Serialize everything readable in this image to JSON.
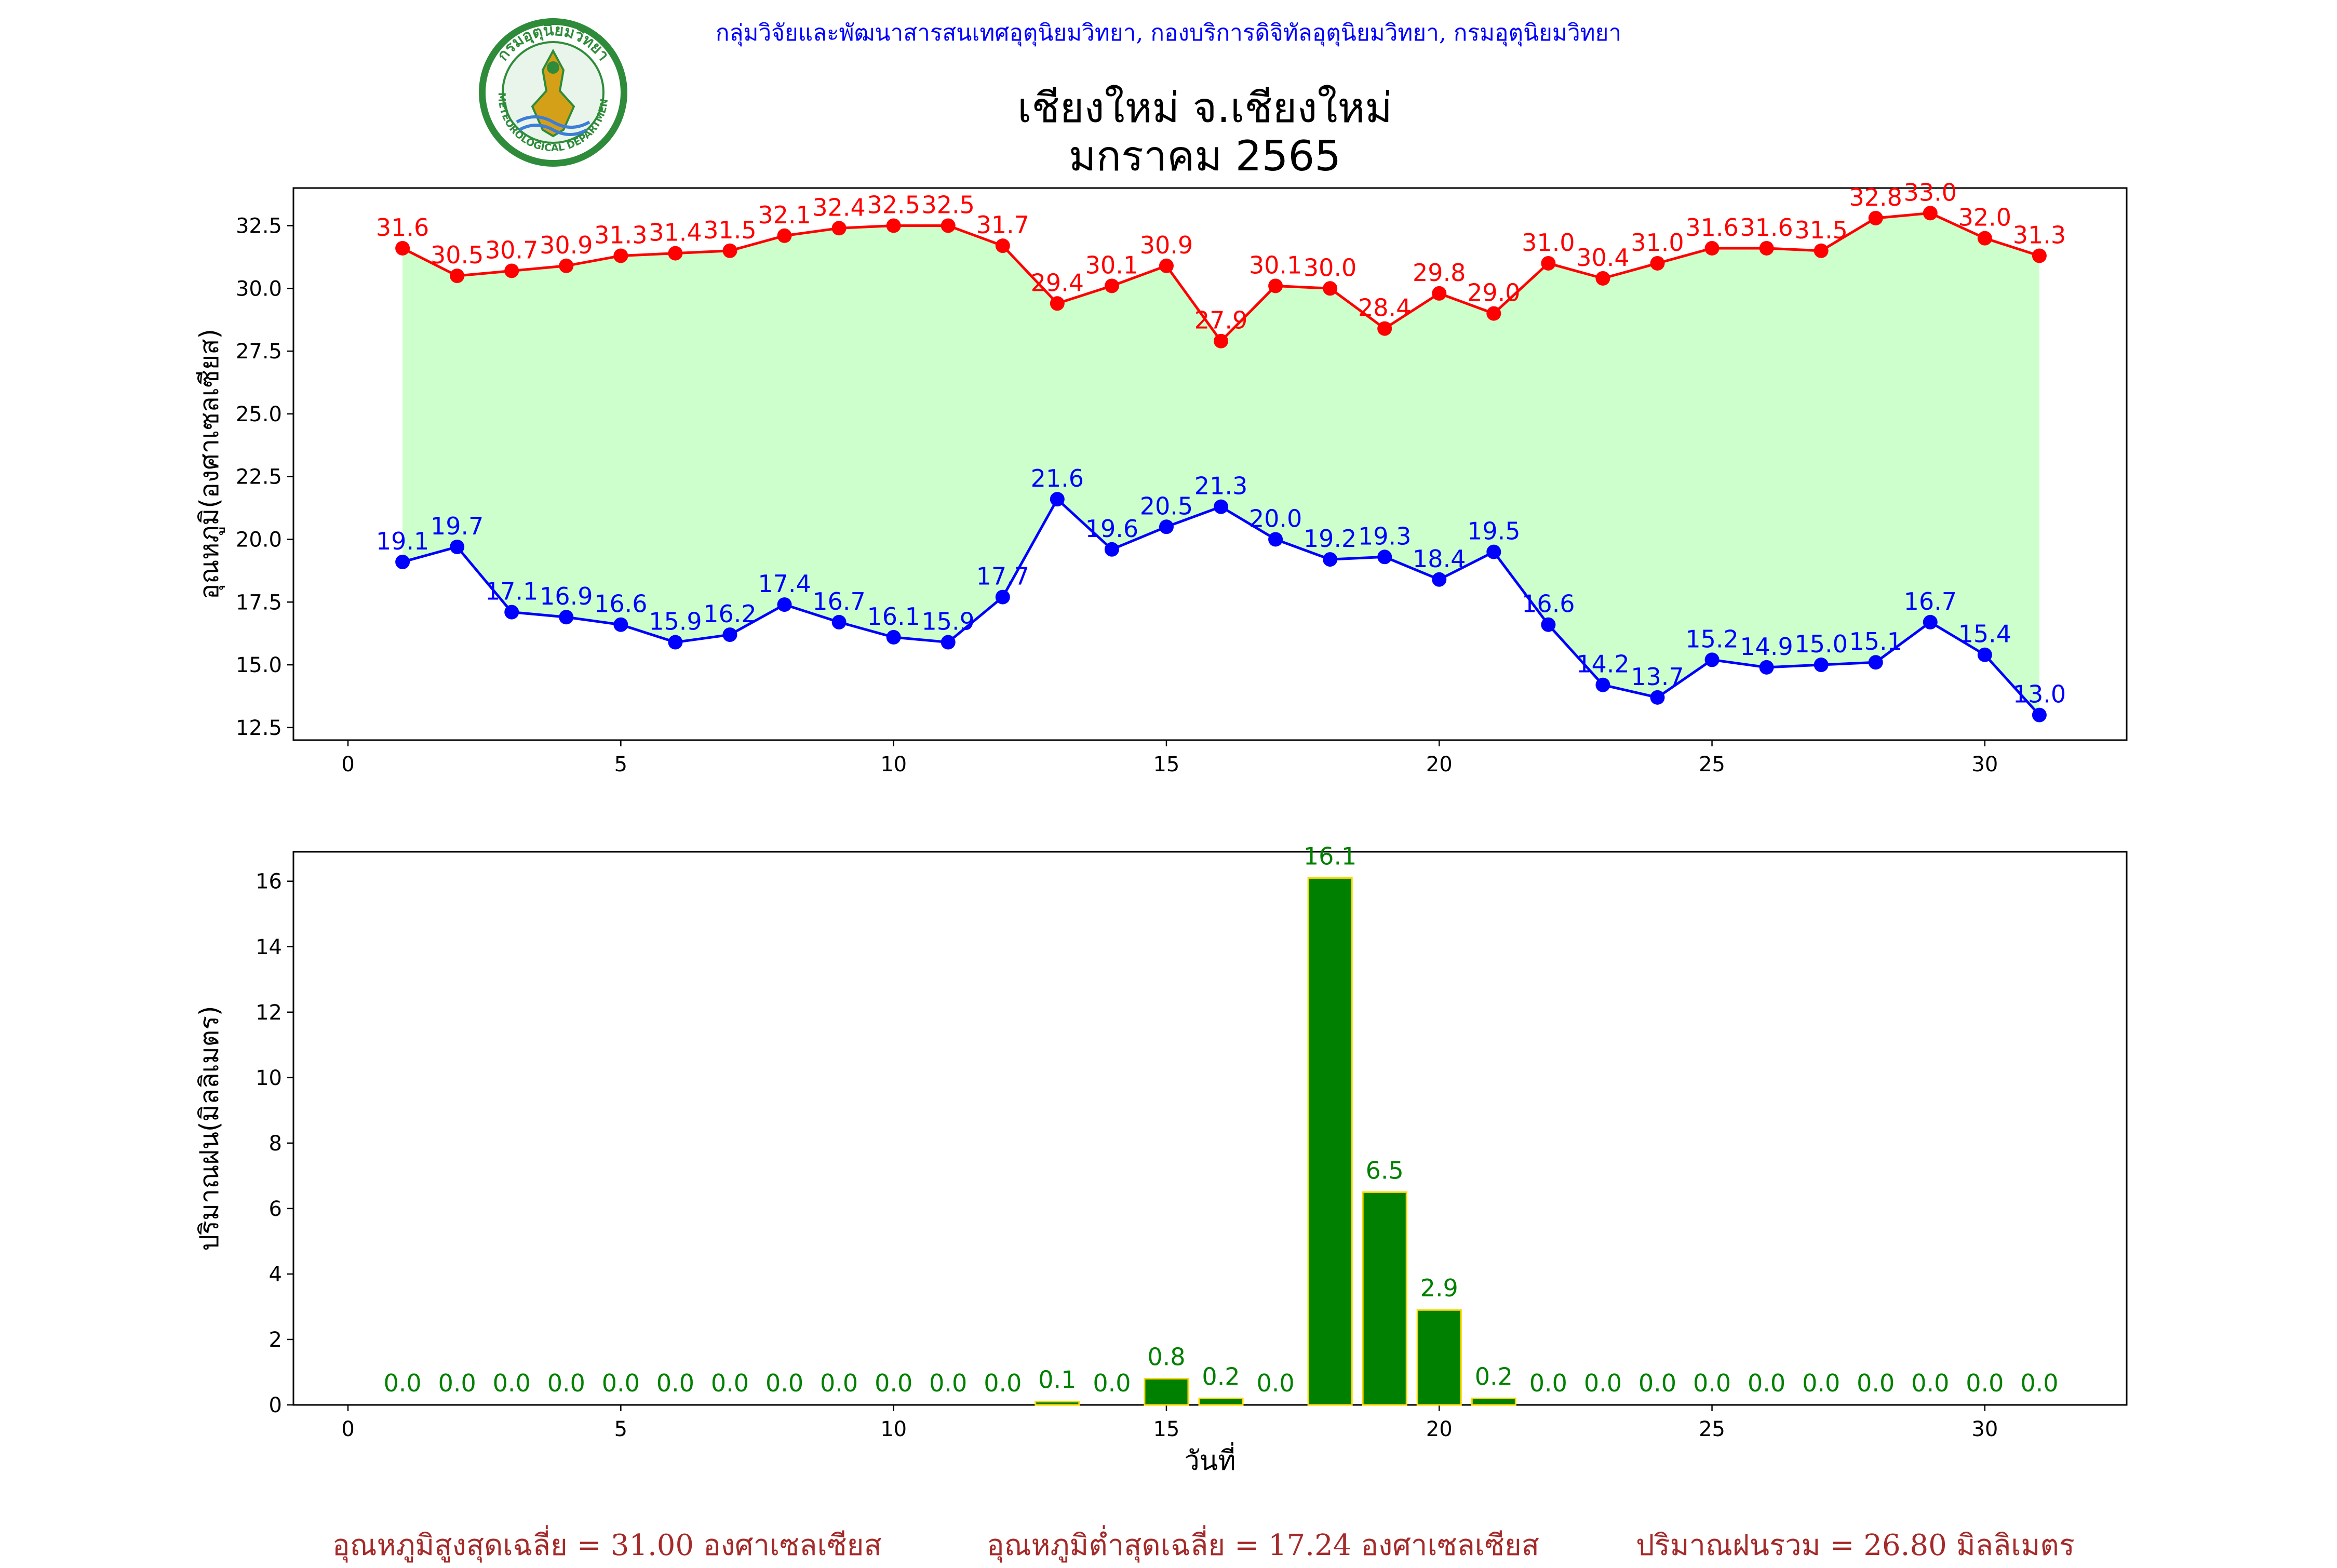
{
  "header": {
    "org_line": "กลุ่มวิจัยและพัฒนาสารสนเทศอุตุนิยมวิทยา, กองบริการดิจิทัลอุตุนิยมวิทยา, กรมอุตุนิยมวิทยา",
    "title_line1": "เชียงใหม่ จ.เชียงใหม่",
    "title_line2": "มกราคม 2565",
    "logo_top_text": "กรมอุตุนิยมวิทยา",
    "logo_bottom_text": "METEOROLOGICAL DEPARTMENT"
  },
  "footer": {
    "avg_max_label": "อุณหภูมิสูงสุดเฉลี่ย",
    "avg_max_value": "31.00",
    "avg_max_unit": "องศาเซลเซียส",
    "avg_min_label": "อุณหภูมิต่ำสุดเฉลี่ย",
    "avg_min_value": "17.24",
    "avg_min_unit": "องศาเซลเซียส",
    "rain_total_label": "ปริมาณฝนรวม",
    "rain_total_value": "26.80",
    "rain_total_unit": "มิลลิเมตร",
    "equals": "="
  },
  "colors": {
    "max_temp": "#ff0000",
    "min_temp": "#0000ff",
    "band_fill": "#ccffcc",
    "rain_bar": "#008000",
    "rain_edge": "#ffd700",
    "rain_label": "#008000",
    "org_line": "#0000ff",
    "footer_text": "#a52a2a"
  },
  "chart_data": [
    {
      "type": "line",
      "ylabel": "อุณหภูมิ(องศาเซลเซียส)",
      "xlim": [
        -1,
        32.6
      ],
      "ylim": [
        12.0,
        34.0
      ],
      "xticks": [
        0,
        5,
        10,
        15,
        20,
        25,
        30
      ],
      "yticks": [
        "12.5",
        "15.0",
        "17.5",
        "20.0",
        "22.5",
        "25.0",
        "27.5",
        "30.0",
        "32.5"
      ],
      "x": [
        1,
        2,
        3,
        4,
        5,
        6,
        7,
        8,
        9,
        10,
        11,
        12,
        13,
        14,
        15,
        16,
        17,
        18,
        19,
        20,
        21,
        22,
        23,
        24,
        25,
        26,
        27,
        28,
        29,
        30,
        31
      ],
      "series": [
        {
          "values": [
            31.6,
            30.5,
            30.7,
            30.9,
            31.3,
            31.4,
            31.5,
            32.1,
            32.4,
            32.5,
            32.5,
            31.7,
            29.4,
            30.1,
            30.9,
            27.9,
            30.1,
            30.0,
            28.4,
            29.8,
            29.0,
            31.0,
            30.4,
            31.0,
            31.6,
            31.6,
            31.5,
            32.8,
            33.0,
            32.0,
            31.3
          ]
        },
        {
          "values": [
            19.1,
            19.7,
            17.1,
            16.9,
            16.6,
            15.9,
            16.2,
            17.4,
            16.7,
            16.1,
            15.9,
            17.7,
            21.6,
            19.6,
            20.5,
            21.3,
            20.0,
            19.2,
            19.3,
            18.4,
            19.5,
            16.6,
            14.2,
            13.7,
            15.2,
            14.9,
            15.0,
            15.1,
            16.7,
            15.4,
            13.0
          ]
        }
      ],
      "grid": false,
      "fill_between": true
    },
    {
      "type": "bar",
      "ylabel": "ปริมาณฝน(มิลลิเมตร)",
      "xlabel": "วันที่",
      "xlim": [
        -1,
        32.6
      ],
      "ylim": [
        0,
        16.9
      ],
      "xticks": [
        0,
        5,
        10,
        15,
        20,
        25,
        30
      ],
      "yticks": [
        "0",
        "2",
        "4",
        "6",
        "8",
        "10",
        "12",
        "14",
        "16"
      ],
      "x": [
        1,
        2,
        3,
        4,
        5,
        6,
        7,
        8,
        9,
        10,
        11,
        12,
        13,
        14,
        15,
        16,
        17,
        18,
        19,
        20,
        21,
        22,
        23,
        24,
        25,
        26,
        27,
        28,
        29,
        30,
        31
      ],
      "values": [
        0.0,
        0.0,
        0.0,
        0.0,
        0.0,
        0.0,
        0.0,
        0.0,
        0.0,
        0.0,
        0.0,
        0.0,
        0.1,
        0.0,
        0.8,
        0.2,
        0.0,
        16.1,
        6.5,
        2.9,
        0.2,
        0.0,
        0.0,
        0.0,
        0.0,
        0.0,
        0.0,
        0.0,
        0.0,
        0.0,
        0.0
      ],
      "grid": false
    }
  ]
}
